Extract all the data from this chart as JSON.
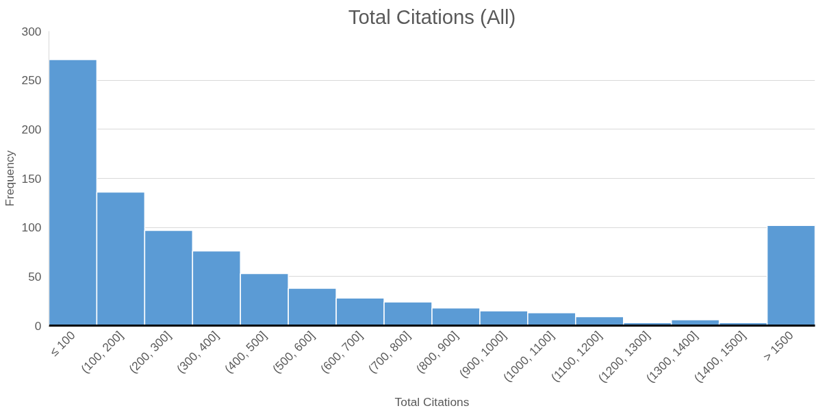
{
  "chart_data": {
    "type": "bar",
    "title": "Total Citations (All)",
    "xlabel": "Total Citations",
    "ylabel": "Frequency",
    "categories": [
      "≤ 100",
      "(100, 200]",
      "(200, 300]",
      "(300, 400]",
      "(400, 500]",
      "(500, 600]",
      "(600, 700]",
      "(700, 800]",
      "(800, 900]",
      "(900, 1000]",
      "(1000, 1100]",
      "(1100, 1200]",
      "(1200, 1300]",
      "(1300, 1400]",
      "(1400, 1500]",
      "> 1500"
    ],
    "values": [
      271,
      136,
      97,
      76,
      53,
      38,
      28,
      24,
      18,
      15,
      13,
      9,
      3,
      6,
      3,
      102
    ],
    "color": "#5b9bd5",
    "ylim": [
      0,
      300
    ],
    "yticks": [
      0,
      50,
      100,
      150,
      200,
      250,
      300
    ],
    "grid": "y"
  }
}
